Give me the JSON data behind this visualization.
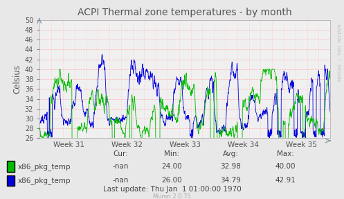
{
  "title": "ACPI Thermal zone temperatures - by month",
  "ylabel": "Celsius",
  "ylim": [
    26,
    50
  ],
  "yticks": [
    26,
    28,
    30,
    32,
    34,
    36,
    38,
    40,
    42,
    44,
    46,
    48,
    50
  ],
  "xtick_labels": [
    "Week 31",
    "Week 32",
    "Week 33",
    "Week 34",
    "Week 35"
  ],
  "background_color": "#e8e8e8",
  "plot_bg_color": "#f0f0f0",
  "grid_color_h": "#ffaaaa",
  "grid_color_v": "#ffcccc",
  "line1_color": "#00bb00",
  "line2_color": "#0000dd",
  "legend": [
    {
      "label": "x86_pkg_temp",
      "color": "#00bb00"
    },
    {
      "label": "x86_pkg_temp",
      "color": "#0000dd"
    }
  ],
  "last_update": "Last update: Thu Jan  1 01:00:00 1970",
  "munin_version": "Munin 2.0.75",
  "watermark": "RRDTOOL / TOBI OETIKER",
  "stats_headers": [
    "Cur:",
    "Min:",
    "Avg:",
    "Max:"
  ],
  "stats_row1": [
    "-nan",
    "24.00",
    "32.98",
    "40.00"
  ],
  "stats_row2": [
    "-nan",
    "26.00",
    "34.79",
    "42.91"
  ]
}
